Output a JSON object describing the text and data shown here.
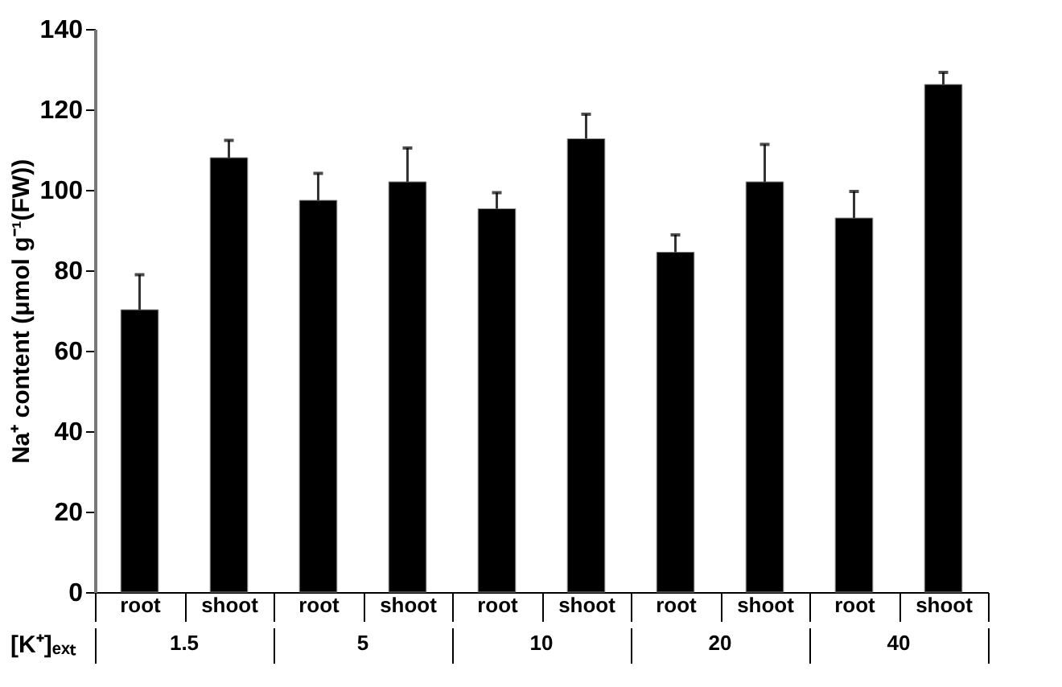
{
  "chart_data": {
    "type": "bar",
    "ylabel": "Na⁺ content (μmol g⁻¹(FW))",
    "xlabel": "[K⁺]ₑₓₜ",
    "categories": [
      "root",
      "shoot",
      "root",
      "shoot",
      "root",
      "shoot",
      "root",
      "shoot",
      "root",
      "shoot"
    ],
    "values": [
      70.2,
      108.0,
      97.4,
      102.0,
      95.3,
      112.7,
      84.5,
      102.0,
      93.0,
      126.2
    ],
    "errors": [
      [
        70.2,
        78.9
      ],
      [
        108.0,
        112.3
      ],
      [
        97.4,
        104.1
      ],
      [
        102.0,
        110.4
      ],
      [
        95.3,
        99.3
      ],
      [
        112.7,
        118.8
      ],
      [
        84.5,
        88.8
      ],
      [
        102.0,
        111.3
      ],
      [
        93.0,
        99.6
      ],
      [
        126.2,
        129.2
      ]
    ],
    "color": "#000000",
    "annotations": [
      "1.5",
      "5",
      "10",
      "20",
      "40"
    ],
    "ylim": [
      0,
      140
    ],
    "yticks": [
      0,
      20,
      40,
      60,
      80,
      100,
      120,
      140
    ],
    "grid": false
  }
}
